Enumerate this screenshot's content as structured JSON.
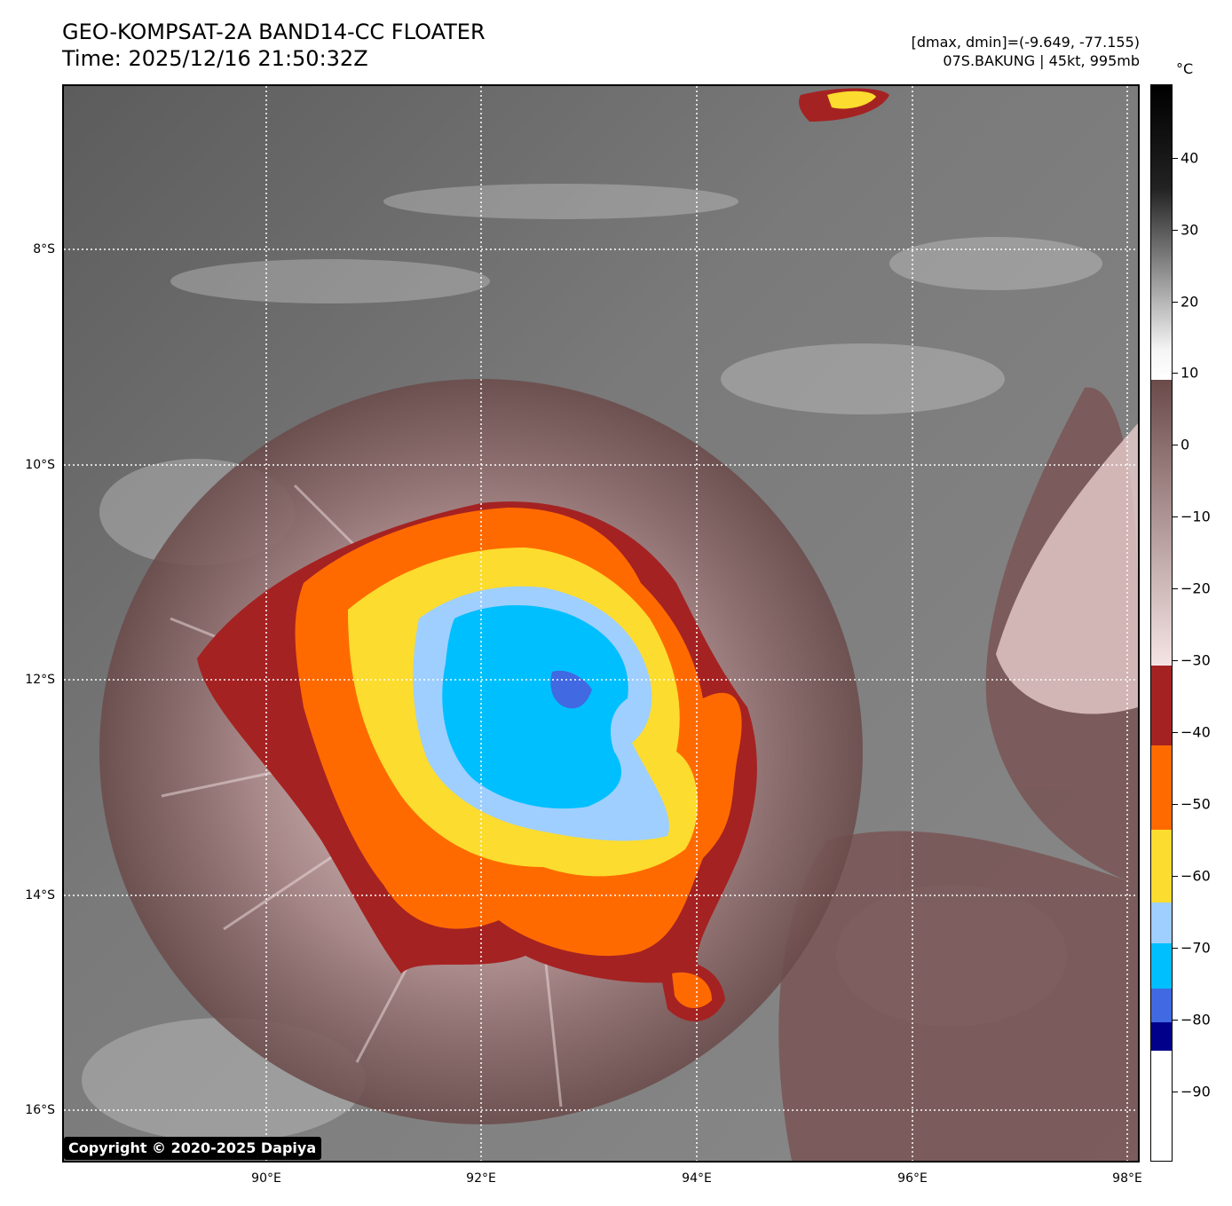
{
  "header": {
    "title_line1": "GEO-KOMPSAT-2A BAND14-CC FLOATER",
    "title_line2": "Time: 2025/12/16 21:50:32Z",
    "info_line1": "[dmax, dmin]=(-9.649, -77.155)",
    "info_line2": "07S.BAKUNG | 45kt, 995mb"
  },
  "map": {
    "lat_labels": [
      "8°S",
      "10°S",
      "12°S",
      "14°S",
      "16°S"
    ],
    "lon_labels": [
      "90°E",
      "92°E",
      "94°E",
      "96°E",
      "98°E"
    ],
    "storm_name": "07S.BAKUNG",
    "copyright": "Copyright © 2020-2025 Dapiya"
  },
  "colorbar": {
    "unit": "°C",
    "tick_labels": [
      "40",
      "30",
      "20",
      "10",
      "0",
      "−10",
      "−20",
      "−30",
      "−40",
      "−50",
      "−60",
      "−70",
      "−80",
      "−90"
    ],
    "colors": {
      "warm_black": "#000000",
      "gray": "#808080",
      "white": "#ffffff",
      "brown": "#6b4a4a",
      "pink": "#f2d8d8",
      "dark_red": "#a52222",
      "orange": "#ff6a00",
      "yellow": "#fcdc2e",
      "light_blue": "#9fcfff",
      "cyan": "#00bfff",
      "royal_blue": "#4169e1",
      "navy": "#00008b"
    }
  }
}
